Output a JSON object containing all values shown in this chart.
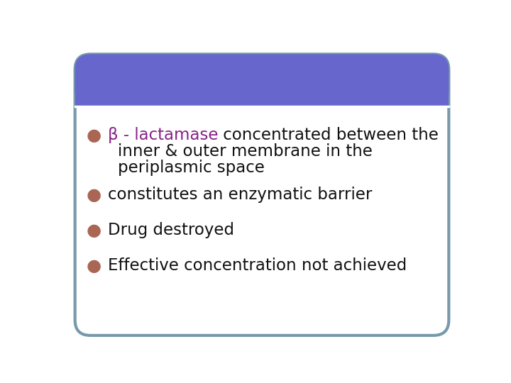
{
  "bg_color": "#ffffff",
  "header_color": "#6666cc",
  "border_color": "#7799aa",
  "bullet_dot_color": "#aa6655",
  "highlight_color": "#882288",
  "text_color": "#111111",
  "bullet_char": "●",
  "font_size": 16.5,
  "bullet_lines": [
    {
      "highlight": "β - lactamase",
      "rest1": " concentrated between the",
      "rest2": "inner & outer membrane in the",
      "rest3": "periplasmic space"
    },
    {
      "highlight": "",
      "rest1": "constitutes an enzymatic barrier"
    },
    {
      "highlight": "",
      "rest1": "Drug destroyed"
    },
    {
      "highlight": "",
      "rest1": "Effective concentration not achieved"
    }
  ]
}
